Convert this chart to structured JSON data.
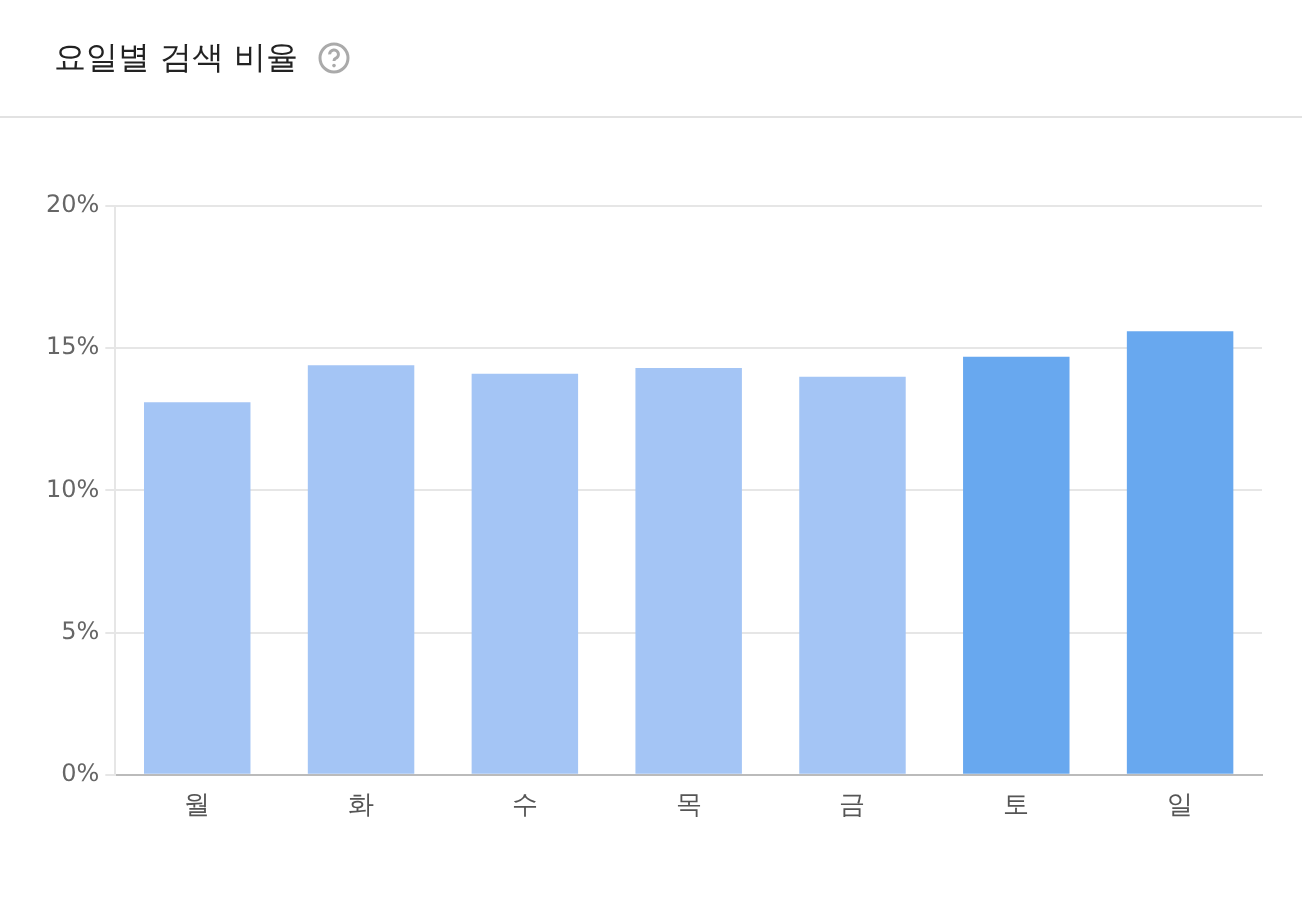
{
  "chart_data": {
    "type": "bar",
    "title": "요일별 검색 비율",
    "categories": [
      "월",
      "화",
      "수",
      "목",
      "금",
      "토",
      "일"
    ],
    "values": [
      13.1,
      14.4,
      14.1,
      14.3,
      14.0,
      14.7,
      15.6
    ],
    "colors": [
      "#a4c5f5",
      "#a4c5f5",
      "#a4c5f5",
      "#a4c5f5",
      "#a4c5f5",
      "#68a8ef",
      "#68a8ef"
    ],
    "ylim": [
      0,
      20
    ],
    "yticks": [
      {
        "value": 0,
        "label": "0%"
      },
      {
        "value": 5,
        "label": "5%"
      },
      {
        "value": 10,
        "label": "10%"
      },
      {
        "value": 15,
        "label": "15%"
      },
      {
        "value": 20,
        "label": "20%"
      }
    ],
    "grid": "y",
    "legend": false
  }
}
